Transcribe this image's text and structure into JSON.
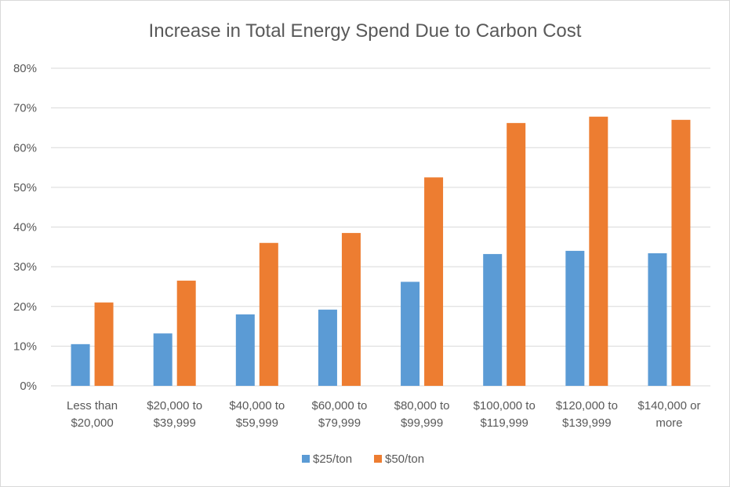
{
  "chart_data": {
    "type": "bar",
    "title": "Increase in Total Energy Spend Due to Carbon Cost",
    "xlabel": "",
    "ylabel": "",
    "categories": [
      [
        "Less than",
        "$20,000"
      ],
      [
        "$20,000 to",
        "$39,999"
      ],
      [
        "$40,000 to",
        "$59,999"
      ],
      [
        "$60,000 to",
        "$79,999"
      ],
      [
        "$80,000 to",
        "$99,999"
      ],
      [
        "$100,000 to",
        "$119,999"
      ],
      [
        "$120,000 to",
        "$139,999"
      ],
      [
        "$140,000 or",
        "more"
      ]
    ],
    "series": [
      {
        "name": "$25/ton",
        "color": "#5b9bd5",
        "values": [
          0.105,
          0.132,
          0.18,
          0.192,
          0.262,
          0.332,
          0.34,
          0.334
        ]
      },
      {
        "name": "$50/ton",
        "color": "#ed7d31",
        "values": [
          0.21,
          0.265,
          0.36,
          0.385,
          0.525,
          0.662,
          0.678,
          0.67
        ]
      }
    ],
    "ylim": [
      0,
      0.8
    ],
    "yticks": [
      "0%",
      "10%",
      "20%",
      "30%",
      "40%",
      "50%",
      "60%",
      "70%",
      "80%"
    ],
    "grid": true,
    "gridColor": "#d9d9d9",
    "legend": "bottom"
  }
}
